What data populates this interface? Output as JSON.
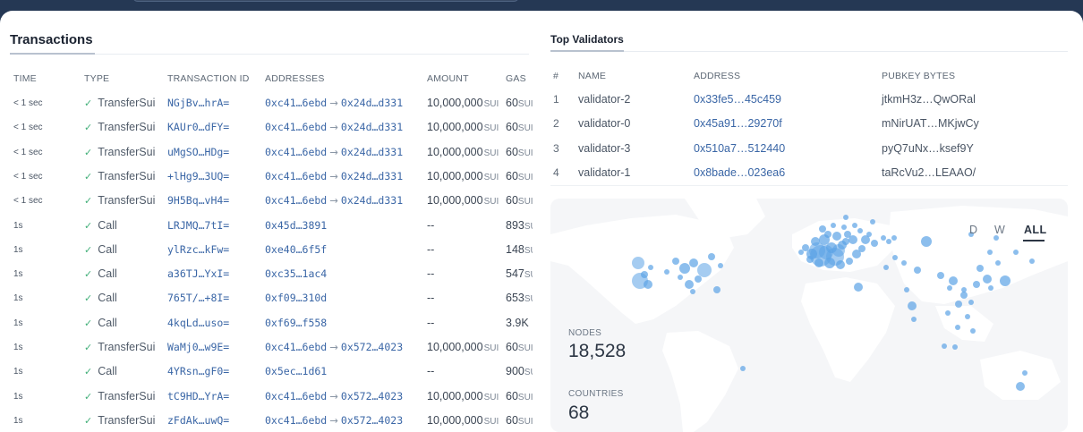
{
  "transactions": {
    "title": "Transactions",
    "headers": {
      "time": "TIME",
      "type": "TYPE",
      "tx_id": "TRANSACTION ID",
      "addresses": "ADDRESSES",
      "amount": "AMOUNT",
      "gas": "GAS"
    },
    "rows": [
      {
        "time": "< 1 sec",
        "type": "TransferSui",
        "id": "NGjBv…hrA=",
        "from": "0xc41…6ebd",
        "to": "0x24d…d331",
        "amount": "10,000,000",
        "amount_unit": "SUI",
        "gas": "60",
        "gas_unit": "SUI"
      },
      {
        "time": "< 1 sec",
        "type": "TransferSui",
        "id": "KAUr0…dFY=",
        "from": "0xc41…6ebd",
        "to": "0x24d…d331",
        "amount": "10,000,000",
        "amount_unit": "SUI",
        "gas": "60",
        "gas_unit": "SUI"
      },
      {
        "time": "< 1 sec",
        "type": "TransferSui",
        "id": "uMgSO…HDg=",
        "from": "0xc41…6ebd",
        "to": "0x24d…d331",
        "amount": "10,000,000",
        "amount_unit": "SUI",
        "gas": "60",
        "gas_unit": "SUI"
      },
      {
        "time": "< 1 sec",
        "type": "TransferSui",
        "id": "+lHg9…3UQ=",
        "from": "0xc41…6ebd",
        "to": "0x24d…d331",
        "amount": "10,000,000",
        "amount_unit": "SUI",
        "gas": "60",
        "gas_unit": "SUI"
      },
      {
        "time": "< 1 sec",
        "type": "TransferSui",
        "id": "9H5Bq…vH4=",
        "from": "0xc41…6ebd",
        "to": "0x24d…d331",
        "amount": "10,000,000",
        "amount_unit": "SUI",
        "gas": "60",
        "gas_unit": "SUI"
      },
      {
        "time": "1s",
        "type": "Call",
        "id": "LRJMQ…7tI=",
        "from": "0x45d…3891",
        "to": "",
        "amount": "--",
        "amount_unit": "",
        "gas": "893",
        "gas_unit": "SUI"
      },
      {
        "time": "1s",
        "type": "Call",
        "id": "ylRzc…kFw=",
        "from": "0xe40…6f5f",
        "to": "",
        "amount": "--",
        "amount_unit": "",
        "gas": "148",
        "gas_unit": "SUI"
      },
      {
        "time": "1s",
        "type": "Call",
        "id": "a36TJ…YxI=",
        "from": "0xc35…1ac4",
        "to": "",
        "amount": "--",
        "amount_unit": "",
        "gas": "547",
        "gas_unit": "SUI"
      },
      {
        "time": "1s",
        "type": "Call",
        "id": "765T/…+8I=",
        "from": "0xf09…310d",
        "to": "",
        "amount": "--",
        "amount_unit": "",
        "gas": "653",
        "gas_unit": "SUI"
      },
      {
        "time": "1s",
        "type": "Call",
        "id": "4kqLd…uso=",
        "from": "0xf69…f558",
        "to": "",
        "amount": "--",
        "amount_unit": "",
        "gas": "3.9K",
        "gas_unit": ""
      },
      {
        "time": "1s",
        "type": "TransferSui",
        "id": "WaMj0…w9E=",
        "from": "0xc41…6ebd",
        "to": "0x572…4023",
        "amount": "10,000,000",
        "amount_unit": "SUI",
        "gas": "60",
        "gas_unit": "SUI"
      },
      {
        "time": "1s",
        "type": "Call",
        "id": "4YRsn…gF0=",
        "from": "0x5ec…1d61",
        "to": "",
        "amount": "--",
        "amount_unit": "",
        "gas": "900",
        "gas_unit": "SUI"
      },
      {
        "time": "1s",
        "type": "TransferSui",
        "id": "tC9HD…YrA=",
        "from": "0xc41…6ebd",
        "to": "0x572…4023",
        "amount": "10,000,000",
        "amount_unit": "SUI",
        "gas": "60",
        "gas_unit": "SUI"
      },
      {
        "time": "1s",
        "type": "TransferSui",
        "id": "zFdAk…uwQ=",
        "from": "0xc41…6ebd",
        "to": "0x572…4023",
        "amount": "10,000,000",
        "amount_unit": "SUI",
        "gas": "60",
        "gas_unit": "SUI"
      }
    ]
  },
  "validators": {
    "title": "Top Validators",
    "headers": {
      "num": "#",
      "name": "NAME",
      "address": "ADDRESS",
      "pubkey": "PUBKEY BYTES"
    },
    "rows": [
      {
        "num": "1",
        "name": "validator-2",
        "address": "0x33fe5…45c459",
        "pubkey": "jtkmH3z…QwORal"
      },
      {
        "num": "2",
        "name": "validator-0",
        "address": "0x45a91…29270f",
        "pubkey": "mNirUAT…MKjwCy"
      },
      {
        "num": "3",
        "name": "validator-3",
        "address": "0x510a7…512440",
        "pubkey": "pyQ7uNx…ksef9Y"
      },
      {
        "num": "4",
        "name": "validator-1",
        "address": "0x8bade…023ea6",
        "pubkey": "taRcVu2…LEAAO/"
      }
    ]
  },
  "map": {
    "ranges": [
      "D",
      "W",
      "ALL"
    ],
    "active_range": "ALL",
    "nodes_label": "NODES",
    "nodes_value": "18,528",
    "countries_label": "COUNTRIES",
    "countries_value": "68"
  },
  "colors": {
    "header_bg": "#253854",
    "link": "#3a66a6",
    "check": "#43b07a",
    "node_dot": "#5ba3e6"
  },
  "icons": {
    "success": "checkmark-icon",
    "transfer": "arrow-right-icon"
  }
}
